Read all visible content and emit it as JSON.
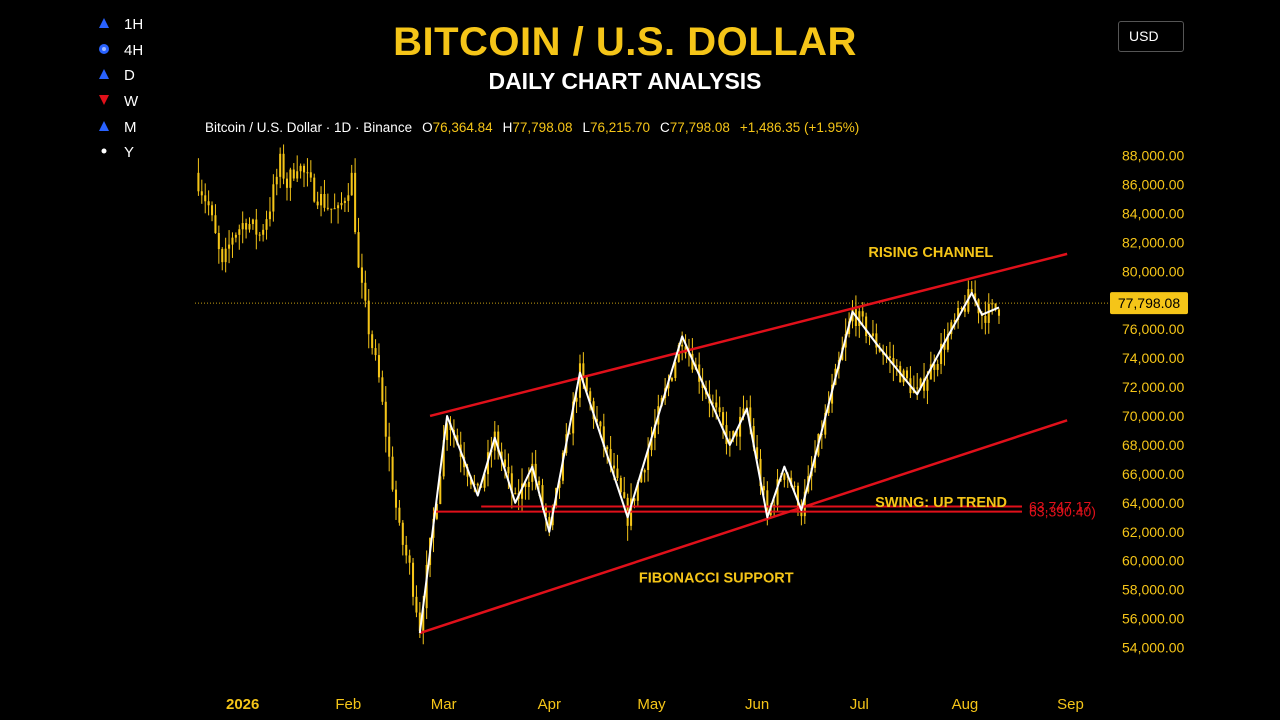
{
  "header": {
    "title": "BITCOIN / U.S. DOLLAR",
    "subtitle": "DAILY CHART ANALYSIS",
    "currency_button": "USD"
  },
  "timeframes": [
    {
      "label": "1H",
      "icon": "triangle-up-icon",
      "color": "#2962ff"
    },
    {
      "label": "4H",
      "icon": "circle-dot-icon",
      "color": "#2962ff"
    },
    {
      "label": "D",
      "icon": "triangle-up-icon",
      "color": "#2962ff"
    },
    {
      "label": "W",
      "icon": "triangle-down-icon",
      "color": "#e0101a"
    },
    {
      "label": "M",
      "icon": "triangle-up-icon",
      "color": "#2962ff"
    },
    {
      "label": "Y",
      "icon": "dot-icon",
      "color": "#ffffff"
    }
  ],
  "ohlc": {
    "symbol": "Bitcoin / U.S. Dollar · 1D · Binance",
    "open_label": "O",
    "open": "76,364.84",
    "high_label": "H",
    "high": "77,798.08",
    "low_label": "L",
    "low": "76,215.70",
    "close_label": "C",
    "close": "77,798.08",
    "change": "+1,486.35 (+1.95%)"
  },
  "colors": {
    "background": "#000000",
    "candle": "#f5c518",
    "swing_line": "#ffffff",
    "channel": "#e0101a",
    "support": "#e0101a",
    "annotation": "#f5c518",
    "price_tag": "#f5c518"
  },
  "chart_data": {
    "type": "candlestick",
    "title": "BITCOIN / U.S. DOLLAR",
    "subtitle": "DAILY CHART ANALYSIS",
    "y_axis": {
      "min": 53000,
      "max": 89000,
      "ticks": [
        54000,
        56000,
        58000,
        60000,
        62000,
        64000,
        66000,
        68000,
        70000,
        72000,
        74000,
        76000,
        78000,
        80000,
        82000,
        84000,
        86000,
        88000
      ],
      "tick_labels": [
        "54,000.00",
        "56,000.00",
        "58,000.00",
        "60,000.00",
        "62,000.00",
        "64,000.00",
        "66,000.00",
        "68,000.00",
        "70,000.00",
        "72,000.00",
        "74,000.00",
        "76,000.00",
        "78,000.00",
        "80,000.00",
        "82,000.00",
        "84,000.00",
        "86,000.00",
        "88,000.00"
      ]
    },
    "x_axis": {
      "start": "2025-12-18",
      "end": "2026-09-12",
      "ticks": [
        {
          "date": "2026-01-01",
          "label": "2026"
        },
        {
          "date": "2026-02-01",
          "label": "Feb"
        },
        {
          "date": "2026-03-01",
          "label": "Mar"
        },
        {
          "date": "2026-04-01",
          "label": "Apr"
        },
        {
          "date": "2026-05-01",
          "label": "May"
        },
        {
          "date": "2026-06-01",
          "label": "Jun"
        },
        {
          "date": "2026-07-01",
          "label": "Jul"
        },
        {
          "date": "2026-08-01",
          "label": "Aug"
        },
        {
          "date": "2026-09-01",
          "label": "Sep"
        }
      ]
    },
    "price_path": [
      {
        "date": "2025-12-18",
        "price": 86800
      },
      {
        "date": "2025-12-22",
        "price": 84500
      },
      {
        "date": "2025-12-26",
        "price": 80200
      },
      {
        "date": "2025-12-29",
        "price": 82500
      },
      {
        "date": "2026-01-02",
        "price": 83500
      },
      {
        "date": "2026-01-06",
        "price": 82500
      },
      {
        "date": "2026-01-09",
        "price": 84500
      },
      {
        "date": "2026-01-12",
        "price": 87500
      },
      {
        "date": "2026-01-14",
        "price": 86000
      },
      {
        "date": "2026-01-17",
        "price": 87500
      },
      {
        "date": "2026-01-22",
        "price": 85500
      },
      {
        "date": "2026-01-26",
        "price": 84500
      },
      {
        "date": "2026-01-29",
        "price": 84000
      },
      {
        "date": "2026-02-02",
        "price": 86500
      },
      {
        "date": "2026-02-04",
        "price": 80000
      },
      {
        "date": "2026-02-07",
        "price": 76000
      },
      {
        "date": "2026-02-10",
        "price": 72500
      },
      {
        "date": "2026-02-13",
        "price": 67000
      },
      {
        "date": "2026-02-16",
        "price": 62000
      },
      {
        "date": "2026-02-19",
        "price": 59500
      },
      {
        "date": "2026-02-22",
        "price": 55500
      }
    ],
    "swing_points": [
      {
        "date": "2026-02-22",
        "price": 55000
      },
      {
        "date": "2026-03-02",
        "price": 70000
      },
      {
        "date": "2026-03-11",
        "price": 64500
      },
      {
        "date": "2026-03-16",
        "price": 68500
      },
      {
        "date": "2026-03-22",
        "price": 64000
      },
      {
        "date": "2026-03-27",
        "price": 66500
      },
      {
        "date": "2026-04-01",
        "price": 62000
      },
      {
        "date": "2026-04-10",
        "price": 73000
      },
      {
        "date": "2026-04-24",
        "price": 63000
      },
      {
        "date": "2026-05-10",
        "price": 75500
      },
      {
        "date": "2026-05-24",
        "price": 68000
      },
      {
        "date": "2026-05-29",
        "price": 70500
      },
      {
        "date": "2026-06-04",
        "price": 63000
      },
      {
        "date": "2026-06-09",
        "price": 66500
      },
      {
        "date": "2026-06-14",
        "price": 63500
      },
      {
        "date": "2026-06-29",
        "price": 77200
      },
      {
        "date": "2026-07-06",
        "price": 75000
      },
      {
        "date": "2026-07-18",
        "price": 71500
      },
      {
        "date": "2026-07-27",
        "price": 75500
      },
      {
        "date": "2026-08-03",
        "price": 78500
      },
      {
        "date": "2026-08-06",
        "price": 77000
      },
      {
        "date": "2026-08-11",
        "price": 77500
      }
    ],
    "last_price": {
      "value": 77798.08,
      "label": "77,798.08"
    },
    "channel": {
      "upper": [
        {
          "date": "2026-02-25",
          "price": 70000
        },
        {
          "date": "2026-08-31",
          "price": 81200
        }
      ],
      "lower": [
        {
          "date": "2026-02-22",
          "price": 55000
        },
        {
          "date": "2026-08-31",
          "price": 69700
        }
      ]
    },
    "support_levels": [
      {
        "value": 63747.17,
        "label": "63,747.17",
        "from": "2026-03-12"
      },
      {
        "value": 63390.4,
        "label": "63,390.40)",
        "from": "2026-02-26"
      }
    ],
    "annotations": [
      {
        "text": "RISING CHANNEL",
        "date": "2026-07-22",
        "price": 81000
      },
      {
        "text": "SWING: UP TREND",
        "date": "2026-07-25",
        "price": 63700
      },
      {
        "text": "FIBONACCI SUPPORT",
        "date": "2026-05-20",
        "price": 58500
      }
    ]
  }
}
